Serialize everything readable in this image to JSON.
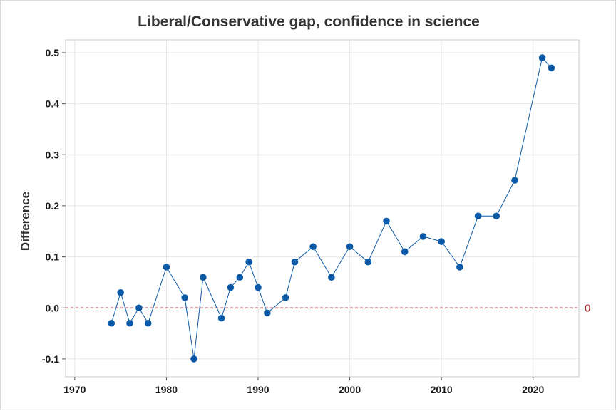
{
  "chart_data": {
    "type": "line",
    "title": "Liberal/Conservative gap, confidence in science",
    "xlabel": "",
    "ylabel": "Difference",
    "xlim": [
      1969,
      2025
    ],
    "ylim": [
      -0.135,
      0.525
    ],
    "x_ticks": [
      1970,
      1980,
      1990,
      2000,
      2010,
      2020
    ],
    "y_ticks": [
      -0.1,
      0.0,
      0.1,
      0.2,
      0.3,
      0.4,
      0.5
    ],
    "x_tick_labels": [
      "1970",
      "1980",
      "1990",
      "2000",
      "2010",
      "2020"
    ],
    "y_tick_labels": [
      "-0.1",
      "0.0",
      "0.1",
      "0.2",
      "0.3",
      "0.4",
      "0.5"
    ],
    "grid": true,
    "reference_line": {
      "y": 0,
      "label": "0",
      "color": "#b02020",
      "style": "dashed"
    },
    "series": [
      {
        "color": "#0b5aa8",
        "marker": "circle",
        "x": [
          1974,
          1975,
          1976,
          1977,
          1978,
          1980,
          1982,
          1983,
          1984,
          1986,
          1987,
          1988,
          1989,
          1990,
          1991,
          1993,
          1994,
          1996,
          1998,
          2000,
          2002,
          2004,
          2006,
          2008,
          2010,
          2012,
          2014,
          2016,
          2018,
          2021,
          2022
        ],
        "y": [
          -0.03,
          0.03,
          -0.03,
          0.0,
          -0.03,
          0.08,
          0.02,
          -0.1,
          0.06,
          -0.02,
          0.04,
          0.06,
          0.09,
          0.04,
          -0.01,
          0.02,
          0.09,
          0.12,
          0.06,
          0.12,
          0.09,
          0.17,
          0.11,
          0.14,
          0.13,
          0.08,
          0.18,
          0.18,
          0.25,
          0.49,
          0.47
        ]
      }
    ]
  }
}
